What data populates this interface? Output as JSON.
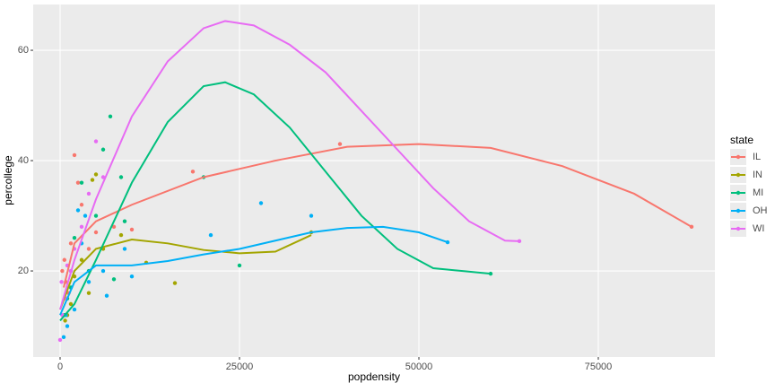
{
  "chart_data": {
    "type": "scatter_smooth",
    "x_label": "popdensity",
    "y_label": "percollege",
    "legend_title": "state",
    "xlim": [
      -3750,
      91250
    ],
    "xticks": [
      0,
      25000,
      50000,
      75000
    ],
    "ylim": [
      4.4,
      68.3
    ],
    "yticks": [
      20,
      40,
      60
    ],
    "grid": true,
    "legend": "right",
    "series": [
      {
        "name": "IL",
        "color": "#F8766D",
        "x": [
          18500,
          39000,
          88000,
          5000,
          1500,
          800,
          3000,
          10000,
          2000,
          600,
          4000,
          1200,
          2500,
          7500,
          300
        ],
        "values": [
          38,
          43,
          28,
          27,
          25,
          18,
          32,
          27.5,
          41,
          22,
          24,
          16,
          36,
          28,
          20
        ],
        "smooth_x": [
          500,
          2000,
          5000,
          10000,
          20000,
          30000,
          40000,
          50000,
          60000,
          70000,
          80000,
          88000
        ],
        "smooth_values": [
          17,
          25,
          29,
          32,
          37,
          40,
          42.5,
          43,
          42.3,
          39,
          34,
          28
        ]
      },
      {
        "name": "IN",
        "color": "#A3A500",
        "x": [
          16000,
          5000,
          4500,
          35000,
          1000,
          1500,
          3000,
          2000,
          8500,
          12000,
          700,
          4000,
          6000
        ],
        "values": [
          17.8,
          37.5,
          36.5,
          27,
          12,
          14,
          22,
          19,
          26.5,
          21.5,
          11,
          16,
          24
        ],
        "smooth_x": [
          0,
          2000,
          5000,
          10000,
          15000,
          20000,
          25000,
          30000,
          35000
        ],
        "smooth_values": [
          13,
          20,
          24,
          25.7,
          25,
          23.8,
          23.2,
          23.5,
          26.5
        ]
      },
      {
        "name": "MI",
        "color": "#00BF7D",
        "x": [
          7000,
          25000,
          60000,
          20000,
          9000,
          8500,
          6000,
          3000,
          2000,
          1000,
          600,
          4000,
          5000,
          7500,
          1500
        ],
        "values": [
          48,
          21,
          19.5,
          37,
          29,
          37,
          42,
          36,
          26,
          15,
          12,
          20,
          30,
          18.5,
          17
        ],
        "smooth_x": [
          0,
          2000,
          5000,
          10000,
          15000,
          20000,
          23000,
          27000,
          32000,
          37000,
          42000,
          47000,
          52000,
          60000
        ],
        "smooth_values": [
          11,
          14,
          22,
          36,
          47,
          53.5,
          54.2,
          52,
          46,
          38,
          30,
          24,
          20.5,
          19.5
        ]
      },
      {
        "name": "OH",
        "color": "#00B0F6",
        "x": [
          28000,
          35000,
          21000,
          54000,
          6500,
          2500,
          3500,
          1000,
          500,
          2000,
          4000,
          9000,
          1500,
          3000,
          800,
          6000,
          10000
        ],
        "values": [
          32.3,
          30,
          26.5,
          25.2,
          15.5,
          31,
          30,
          10,
          8,
          13,
          18,
          24,
          20,
          25,
          12,
          20,
          19
        ],
        "smooth_x": [
          0,
          2000,
          5000,
          10000,
          15000,
          20000,
          25000,
          30000,
          35000,
          40000,
          45000,
          50000,
          54000
        ],
        "smooth_values": [
          12,
          18,
          21,
          21,
          21.8,
          23,
          24,
          25.5,
          27,
          27.8,
          28,
          27,
          25.2
        ]
      },
      {
        "name": "WI",
        "color": "#E76BF3",
        "x": [
          5000,
          0,
          200,
          1000,
          64000,
          3000,
          2000,
          800,
          4000,
          300,
          1500,
          6000
        ],
        "values": [
          43.5,
          7.5,
          18,
          21,
          25.4,
          28,
          24,
          15,
          34,
          12,
          20,
          37
        ],
        "smooth_x": [
          0,
          2000,
          5000,
          10000,
          15000,
          20000,
          23000,
          27000,
          32000,
          37000,
          42000,
          47000,
          52000,
          57000,
          62000,
          64000
        ],
        "smooth_values": [
          13,
          22,
          33,
          48,
          58,
          64,
          65.3,
          64.5,
          61,
          56,
          49,
          42,
          35,
          29,
          25.5,
          25.4
        ]
      }
    ]
  }
}
